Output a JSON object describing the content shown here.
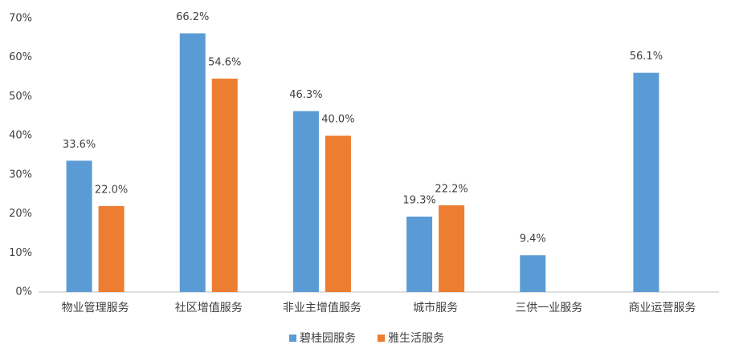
{
  "chart_data": {
    "type": "bar",
    "categories": [
      "物业管理服务",
      "社区增值服务",
      "非业主增值服务",
      "城市服务",
      "三供一业服务",
      "商业运营服务"
    ],
    "series": [
      {
        "name": "碧桂园服务",
        "color": "#5b9bd5",
        "values": [
          33.6,
          66.2,
          46.3,
          19.3,
          9.4,
          56.1
        ],
        "value_labels": [
          "33.6%",
          "66.2%",
          "46.3%",
          "19.3%",
          "9.4%",
          "56.1%"
        ]
      },
      {
        "name": "雅生活服务",
        "color": "#ed7d31",
        "values": [
          22.0,
          54.6,
          40.0,
          22.2,
          null,
          null
        ],
        "value_labels": [
          "22.0%",
          "54.6%",
          "40.0%",
          "22.2%",
          null,
          null
        ]
      }
    ],
    "ylim": [
      0,
      70
    ],
    "yticks": [
      {
        "value": 0,
        "label": "0%"
      },
      {
        "value": 10,
        "label": "10%"
      },
      {
        "value": 20,
        "label": "20%"
      },
      {
        "value": 30,
        "label": "30%"
      },
      {
        "value": 40,
        "label": "40%"
      },
      {
        "value": 50,
        "label": "50%"
      },
      {
        "value": 60,
        "label": "60%"
      },
      {
        "value": 70,
        "label": "70%"
      }
    ],
    "grid": false,
    "legend": "bottom"
  }
}
